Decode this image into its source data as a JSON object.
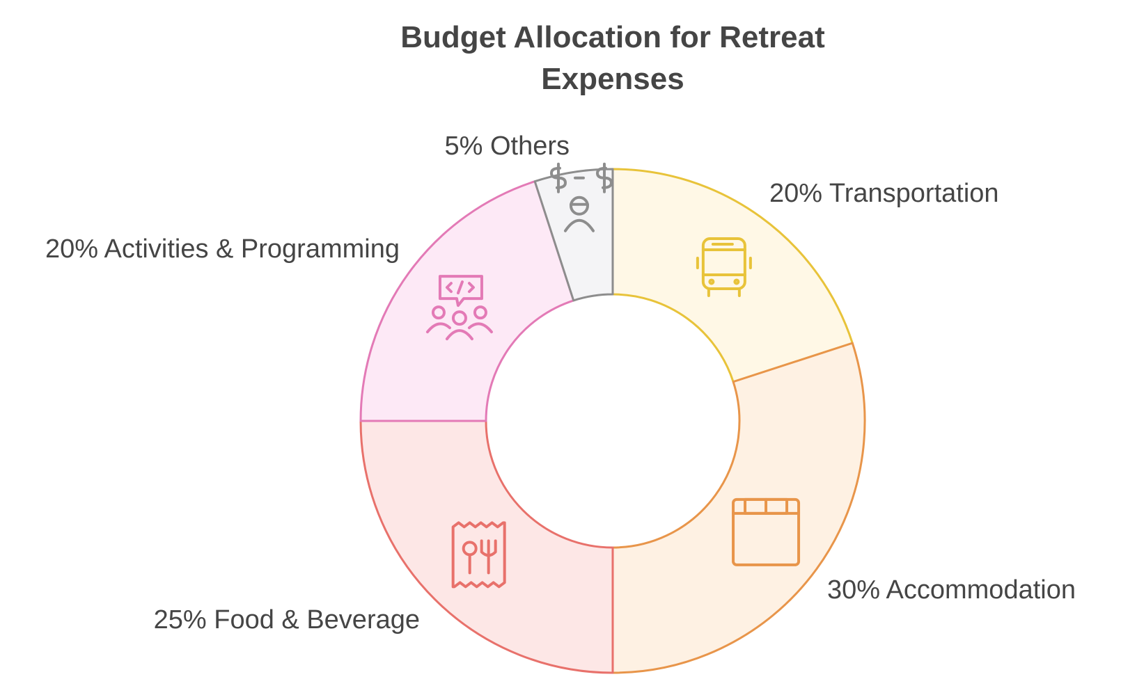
{
  "chart_data": {
    "type": "pie",
    "title_lines": [
      "Budget Allocation for Retreat",
      "Expenses"
    ],
    "slices": [
      {
        "label": "20% Transportation",
        "value": 20,
        "color": "#e8c33a",
        "fill": "#fff8e6",
        "icon": "bus-icon"
      },
      {
        "label": "30% Accommodation",
        "value": 30,
        "color": "#e8954a",
        "fill": "#fef1e3",
        "icon": "bed-icon"
      },
      {
        "label": "25% Food & Beverage",
        "value": 25,
        "color": "#e8716b",
        "fill": "#fde7e6",
        "icon": "receipt-utensils-icon"
      },
      {
        "label": "20% Activities & Programming",
        "value": 20,
        "color": "#e37ab6",
        "fill": "#fde9f6",
        "icon": "group-presentation-icon"
      },
      {
        "label": "5% Others",
        "value": 5,
        "color": "#8d8d8d",
        "fill": "#f4f4f6",
        "icon": "person-currency-icon"
      }
    ]
  }
}
